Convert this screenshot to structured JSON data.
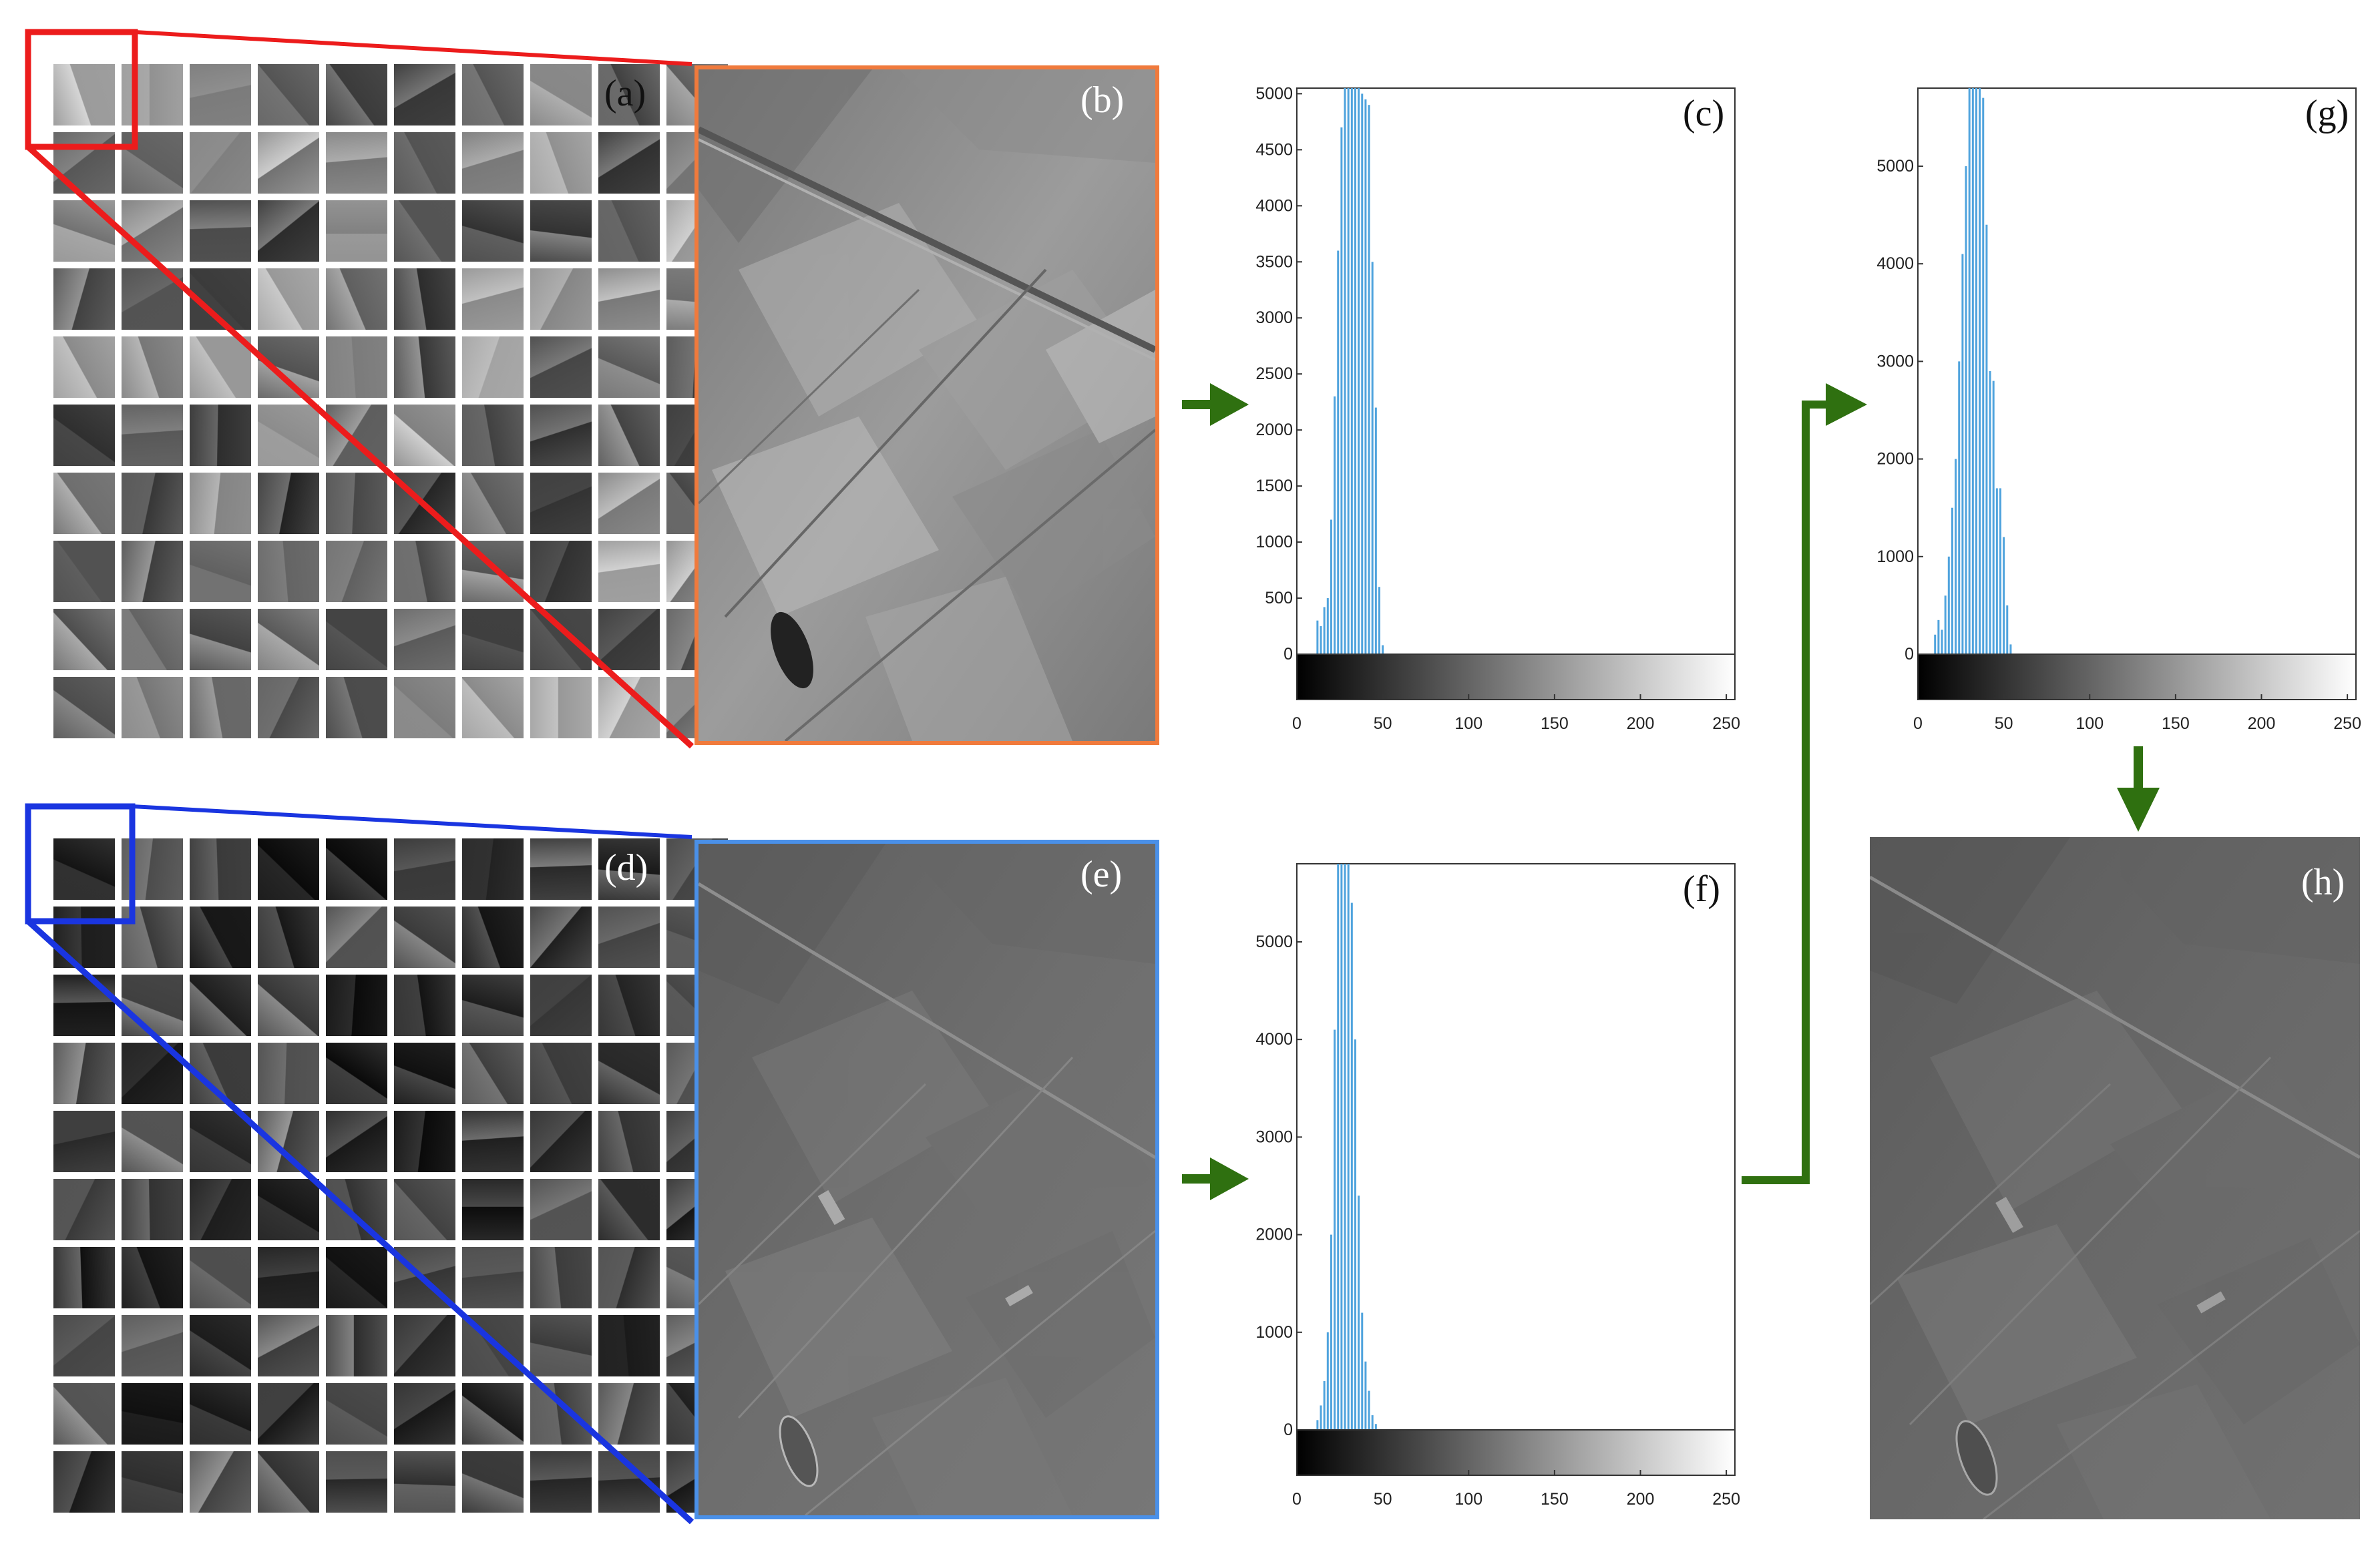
{
  "panels": {
    "a": "(a)",
    "b": "(b)",
    "c": "(c)",
    "d": "(d)",
    "e": "(e)",
    "f": "(f)",
    "g": "(g)",
    "h": "(h)"
  },
  "colors": {
    "red_box": "#ec1c1c",
    "blue_box": "#1a35e0",
    "orange_border": "#f07a3c",
    "light_blue_border": "#4a90e8",
    "hist_bars": "#4fa3dd",
    "arrow_green": "#2f7010"
  },
  "chart_data": [
    {
      "panel": "c",
      "type": "bar",
      "x_ticks": [
        0,
        50,
        100,
        150,
        200,
        250
      ],
      "y_ticks": [
        0,
        500,
        1000,
        1500,
        2000,
        2500,
        3000,
        3500,
        4000,
        4500,
        5000
      ],
      "xlim": [
        0,
        255
      ],
      "ylim": [
        0,
        5050
      ],
      "x": [
        12,
        14,
        16,
        18,
        20,
        22,
        24,
        26,
        28,
        30,
        32,
        34,
        36,
        38,
        40,
        42,
        44,
        46,
        48,
        50
      ],
      "values": [
        300,
        250,
        420,
        500,
        1200,
        2300,
        3600,
        4700,
        5050,
        5050,
        5050,
        5050,
        5050,
        5000,
        4950,
        4900,
        3500,
        2200,
        600,
        80
      ]
    },
    {
      "panel": "f",
      "type": "bar",
      "x_ticks": [
        0,
        50,
        100,
        150,
        200,
        250
      ],
      "y_ticks": [
        0,
        1000,
        2000,
        3000,
        4000,
        5000
      ],
      "xlim": [
        0,
        255
      ],
      "ylim": [
        0,
        5800
      ],
      "x": [
        12,
        14,
        16,
        18,
        20,
        22,
        24,
        26,
        28,
        30,
        32,
        34,
        36,
        38,
        40,
        42,
        44,
        46
      ],
      "values": [
        100,
        250,
        500,
        1000,
        2000,
        4100,
        5800,
        5800,
        5800,
        5800,
        5400,
        4000,
        2400,
        1200,
        700,
        400,
        150,
        60
      ]
    },
    {
      "panel": "g",
      "type": "bar",
      "x_ticks": [
        0,
        50,
        100,
        150,
        200,
        250
      ],
      "y_ticks": [
        0,
        1000,
        2000,
        3000,
        4000,
        5000
      ],
      "xlim": [
        0,
        255
      ],
      "ylim": [
        0,
        5800
      ],
      "x": [
        10,
        12,
        14,
        16,
        18,
        20,
        22,
        24,
        26,
        28,
        30,
        32,
        34,
        36,
        38,
        40,
        42,
        44,
        46,
        48,
        50,
        52,
        54
      ],
      "values": [
        200,
        350,
        250,
        600,
        1000,
        1500,
        2000,
        3000,
        4100,
        5000,
        5800,
        5800,
        5800,
        5800,
        5700,
        4400,
        2900,
        2800,
        1700,
        1700,
        1200,
        500,
        100
      ]
    }
  ]
}
